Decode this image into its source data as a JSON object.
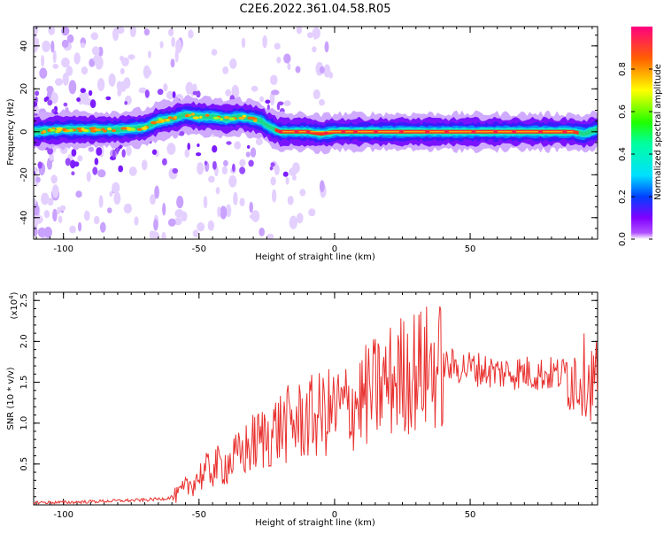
{
  "title": "C2E6.2022.361.04.58.R05",
  "colors": {
    "snr_line": "#e8312f",
    "axis": "#000000",
    "background": "#ffffff"
  },
  "chart_data": [
    {
      "type": "heatmap",
      "title": "",
      "xlabel": "Height of straight line (km)",
      "ylabel": "Frequency (Hz)",
      "xlim": [
        -111,
        97
      ],
      "ylim": [
        -50,
        49
      ],
      "xticks": [
        -100,
        -50,
        0,
        50
      ],
      "yticks": [
        -40,
        -20,
        0,
        20,
        40
      ],
      "colorbar": {
        "label": "Normalized spectral amplitude",
        "range": [
          0,
          1
        ],
        "ticks": [
          0.0,
          0.2,
          0.4,
          0.6,
          0.8
        ],
        "colormap": "rainbow"
      },
      "ridge": {
        "x": [
          -111,
          -100,
          -90,
          -80,
          -70,
          -65,
          -60,
          -55,
          -50,
          -45,
          -40,
          -35,
          -30,
          -27,
          -25,
          -22,
          -20,
          -10,
          -5,
          0,
          10,
          20,
          40,
          60,
          80,
          85,
          88,
          92,
          97
        ],
        "y": [
          0,
          1,
          1,
          1,
          2,
          5,
          6,
          8,
          7,
          7,
          6,
          7,
          6,
          5,
          3,
          1,
          0,
          0,
          -1,
          0,
          0,
          0,
          0,
          0,
          0,
          0,
          0,
          -1,
          1
        ]
      }
    },
    {
      "type": "line",
      "title": "",
      "xlabel": "Height of straight line (km)",
      "ylabel": "SNR (10 * v/v)",
      "yscale_label": "(x10",
      "yscale_exp": "4",
      "yscale_suffix": ")",
      "xlim": [
        -111,
        97
      ],
      "ylim": [
        0,
        2.6
      ],
      "xticks": [
        -100,
        -50,
        0,
        50
      ],
      "yticks": [
        0.5,
        1.0,
        1.5,
        2.0,
        2.5
      ],
      "series": [
        {
          "trend_x": [
            -111,
            -100,
            -90,
            -80,
            -70,
            -62,
            -58,
            -55,
            -50,
            -45,
            -40,
            -35,
            -30,
            -25,
            -20,
            -15,
            -10,
            -5,
            0,
            5,
            10,
            15,
            20,
            25,
            30,
            40,
            50,
            55,
            60,
            65,
            70,
            75,
            80,
            85,
            88,
            90,
            92,
            95,
            97
          ],
          "trend_y": [
            0.03,
            0.03,
            0.04,
            0.05,
            0.06,
            0.08,
            0.12,
            0.2,
            0.35,
            0.45,
            0.5,
            0.6,
            0.75,
            0.85,
            0.95,
            1.0,
            1.05,
            1.1,
            1.15,
            1.2,
            1.3,
            1.4,
            1.5,
            1.6,
            1.65,
            1.7,
            1.68,
            1.65,
            1.62,
            1.62,
            1.62,
            1.6,
            1.6,
            1.6,
            1.6,
            1.55,
            1.6,
            1.5,
            1.6
          ]
        }
      ]
    }
  ]
}
